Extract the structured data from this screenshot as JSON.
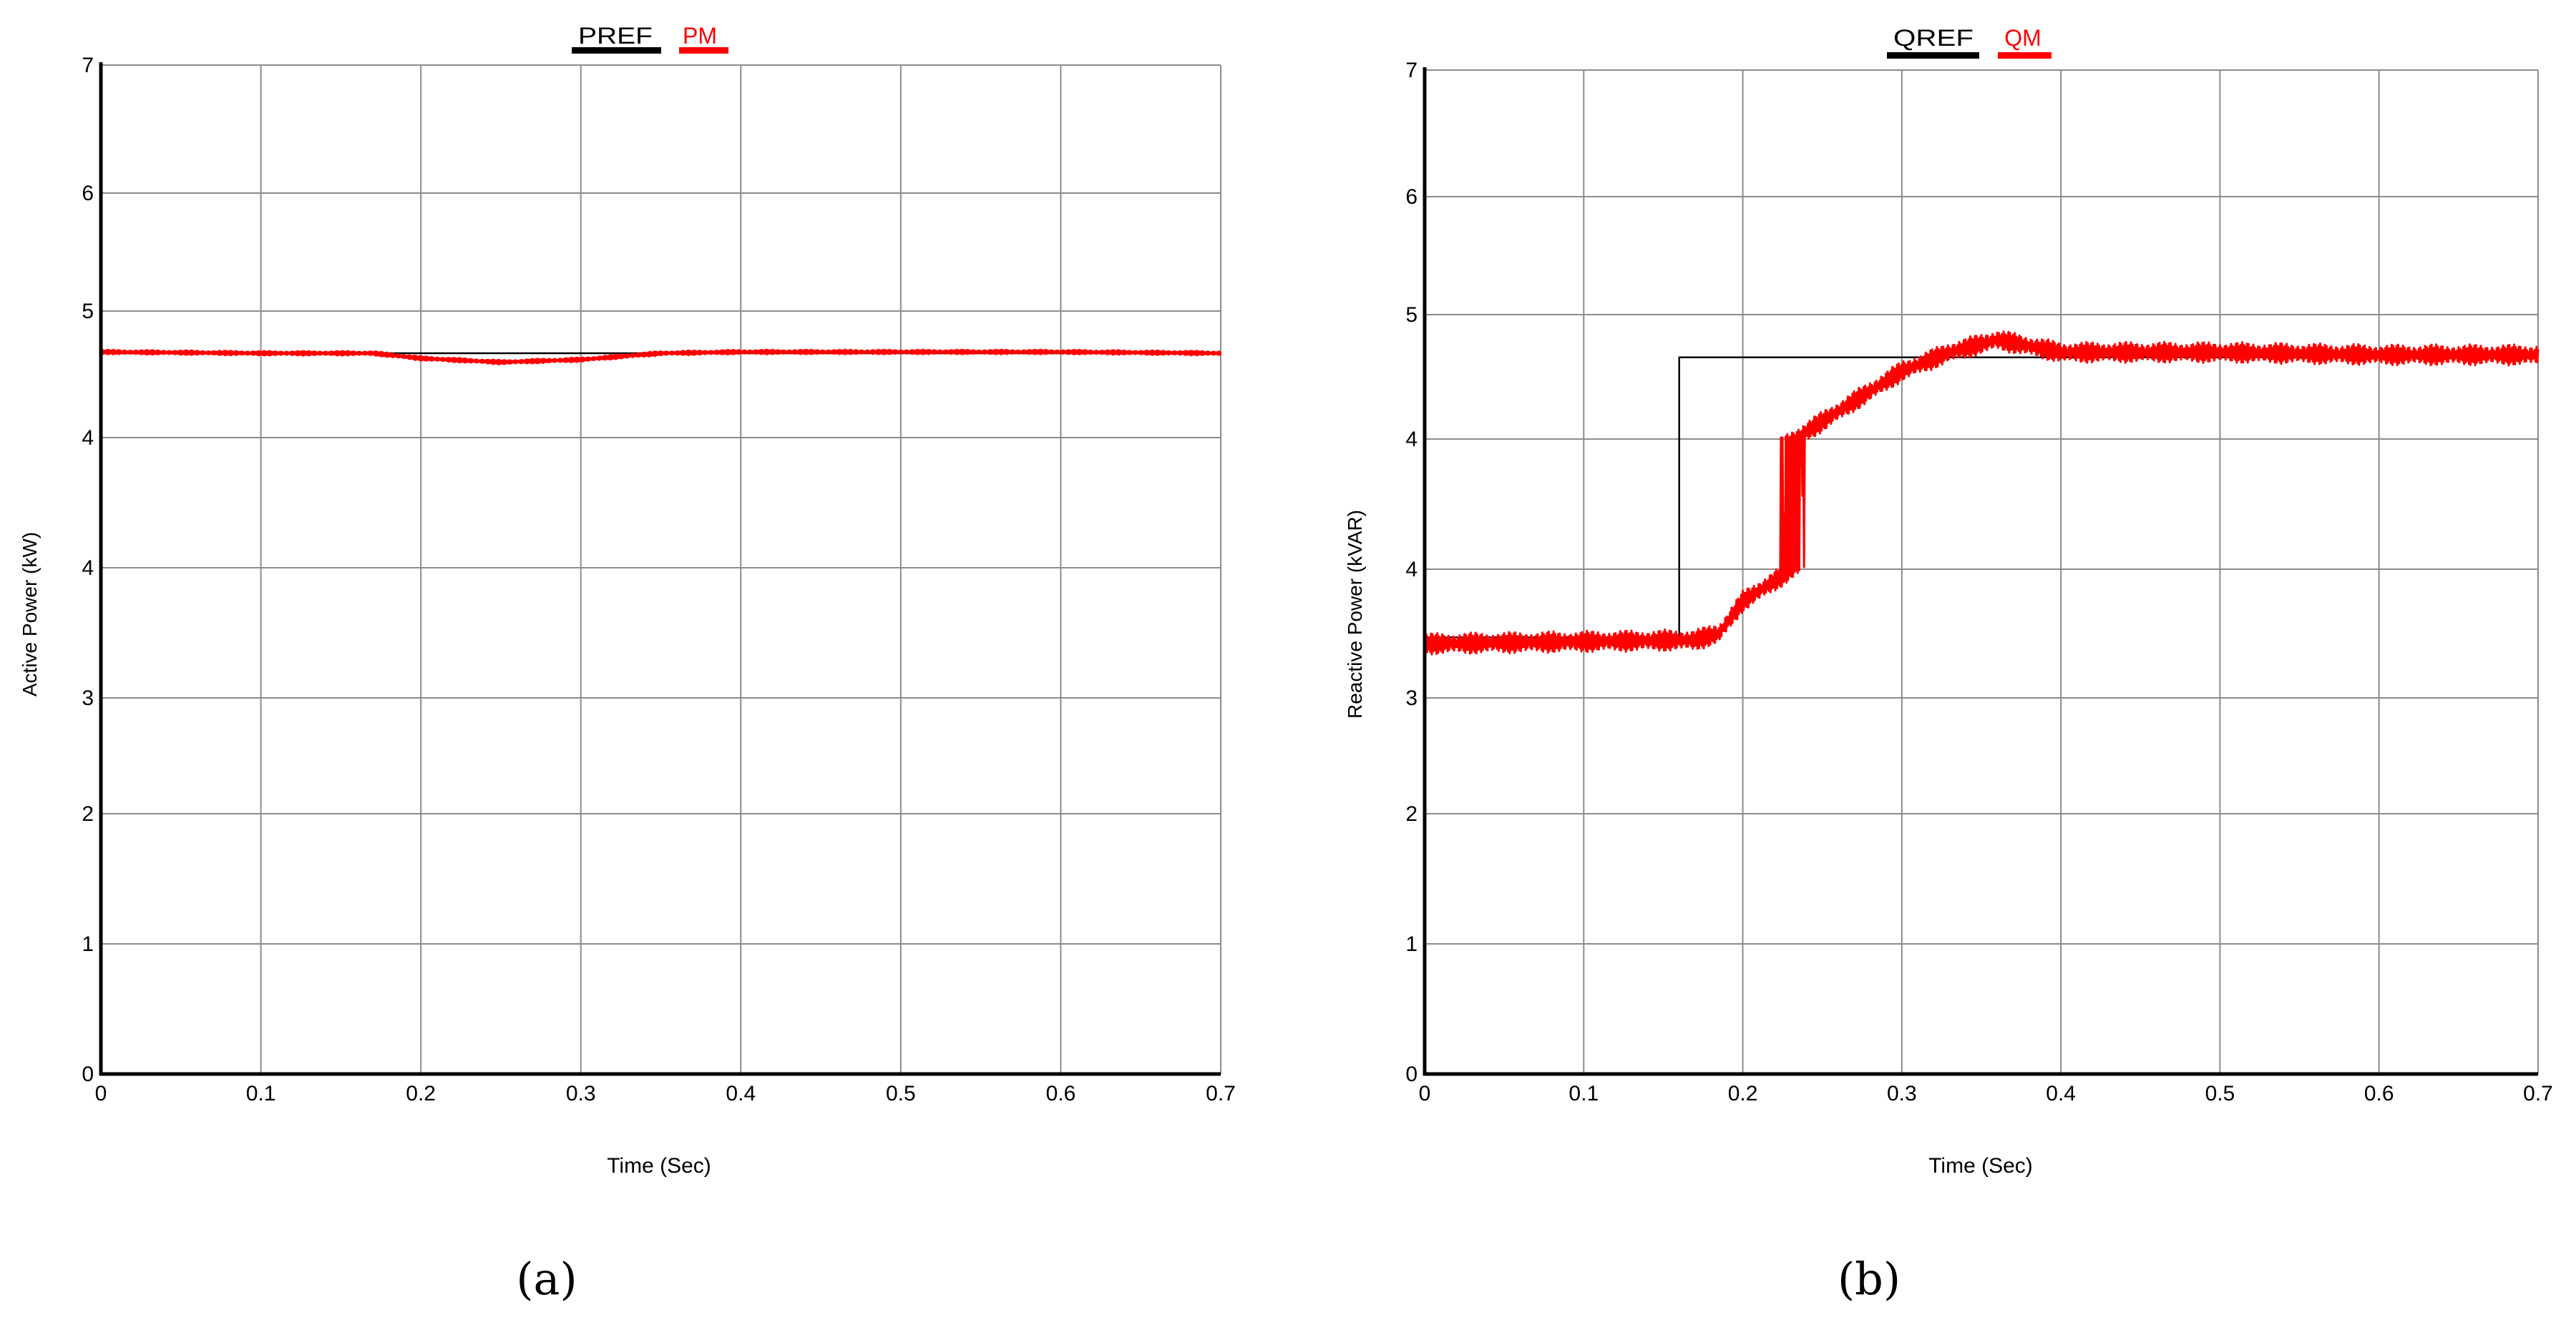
{
  "chart_data": [
    {
      "type": "line",
      "caption": "(a)",
      "xlabel": "Time (Sec)",
      "ylabel": "Active Power (kW)",
      "xlim": [
        0,
        0.7
      ],
      "ylim": [
        0,
        7
      ],
      "grid": true,
      "legend_placement": "top-center",
      "x_ticks": [
        "0",
        "0.1",
        "0.2",
        "0.3",
        "0.4",
        "0.5",
        "0.6",
        "0.7"
      ],
      "y_ticks": [
        "0",
        "1",
        "2",
        "3",
        "4",
        "4",
        "5",
        "6",
        "7"
      ],
      "series": [
        {
          "name": "PREF",
          "color": "#000000",
          "x": [
            0,
            0.7
          ],
          "y": [
            4.67,
            4.67
          ]
        },
        {
          "name": "PM",
          "color": "#ff0000",
          "x": [
            0,
            0.1,
            0.17,
            0.2,
            0.25,
            0.3,
            0.35,
            0.4,
            0.5,
            0.6,
            0.7
          ],
          "y": [
            4.68,
            4.67,
            4.67,
            4.63,
            4.6,
            4.62,
            4.67,
            4.68,
            4.68,
            4.68,
            4.67
          ],
          "ripple": 0.015
        }
      ]
    },
    {
      "type": "line",
      "caption": "(b)",
      "xlabel": "Time (Sec)",
      "ylabel": "Reactive Power (kVAR)",
      "xlim": [
        0,
        0.7
      ],
      "ylim": [
        0,
        7
      ],
      "grid": true,
      "legend_placement": "top-center",
      "x_ticks": [
        "0",
        "0.1",
        "0.2",
        "0.3",
        "0.4",
        "0.5",
        "0.6",
        "0.7"
      ],
      "y_ticks": [
        "0",
        "1",
        "2",
        "3",
        "4",
        "4",
        "5",
        "6",
        "7"
      ],
      "series": [
        {
          "name": "QREF",
          "color": "#000000",
          "x": [
            0,
            0.16,
            0.16,
            0.7
          ],
          "y": [
            3.47,
            3.47,
            4.66,
            4.66
          ]
        },
        {
          "name": "QM",
          "color": "#ff0000",
          "x": [
            0,
            0.17,
            0.185,
            0.2,
            0.25,
            0.3,
            0.33,
            0.36,
            0.4,
            0.5,
            0.6,
            0.7
          ],
          "y": [
            3.42,
            3.45,
            3.5,
            3.75,
            4.15,
            4.55,
            4.7,
            4.8,
            4.7,
            4.7,
            4.68,
            4.68
          ],
          "ripple": 0.07
        }
      ]
    }
  ]
}
